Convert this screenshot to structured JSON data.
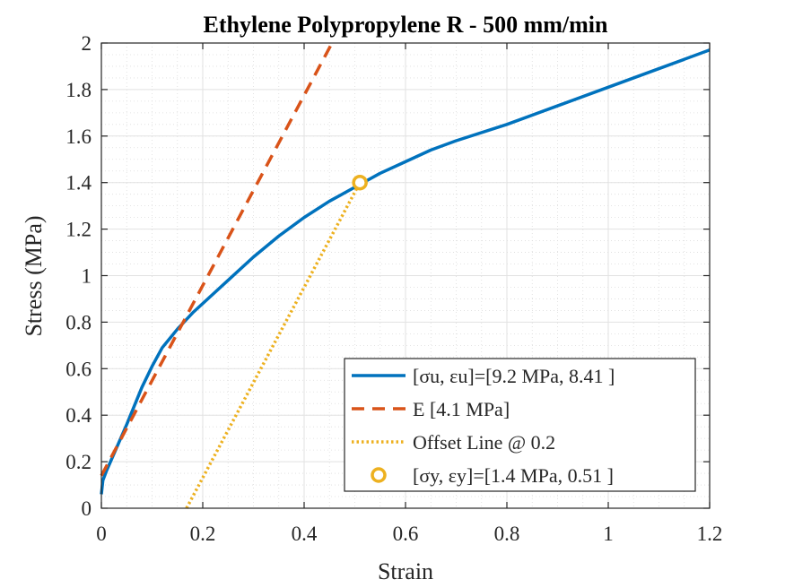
{
  "chart_data": {
    "type": "line",
    "title": "Ethylene Polypropylene R - 500 mm/min",
    "xlabel": "Strain",
    "ylabel": "Stress (MPa)",
    "xlim": [
      0,
      1.2
    ],
    "ylim": [
      0,
      2
    ],
    "xticks": [
      "0",
      "0.2",
      "0.4",
      "0.6",
      "0.8",
      "1",
      "1.2"
    ],
    "yticks": [
      "0",
      "0.2",
      "0.4",
      "0.6",
      "0.8",
      "1",
      "1.2",
      "1.4",
      "1.6",
      "1.8",
      "2"
    ],
    "grid": true,
    "minor_grid": true,
    "legend_position": "bottom-right",
    "series": [
      {
        "name": "[σu, εu]=[9.2 MPa, 8.41 ]",
        "style": "solid",
        "color": "#0072BD",
        "x": [
          0,
          0.003,
          0.01,
          0.02,
          0.03,
          0.05,
          0.08,
          0.1,
          0.12,
          0.15,
          0.18,
          0.2,
          0.25,
          0.3,
          0.35,
          0.4,
          0.45,
          0.5,
          0.55,
          0.6,
          0.65,
          0.7,
          0.8,
          0.9,
          1.0,
          1.1,
          1.2
        ],
        "y": [
          0.06,
          0.12,
          0.16,
          0.21,
          0.26,
          0.36,
          0.52,
          0.61,
          0.69,
          0.77,
          0.84,
          0.88,
          0.98,
          1.08,
          1.17,
          1.25,
          1.32,
          1.38,
          1.44,
          1.49,
          1.54,
          1.58,
          1.65,
          1.73,
          1.81,
          1.89,
          1.97
        ]
      },
      {
        "name": "E [4.1 MPa]",
        "style": "dashed",
        "color": "#D95319",
        "x": [
          0,
          0.455
        ],
        "y": [
          0.14,
          2.0
        ]
      },
      {
        "name": "Offset Line @ 0.2",
        "style": "dotted",
        "color": "#EDB120",
        "x": [
          0.168,
          0.51
        ],
        "y": [
          0,
          1.4
        ]
      }
    ],
    "markers": [
      {
        "name": "[σy, εy]=[1.4 MPa, 0.51 ]",
        "x": 0.51,
        "y": 1.4,
        "color": "#EDB120"
      }
    ]
  }
}
